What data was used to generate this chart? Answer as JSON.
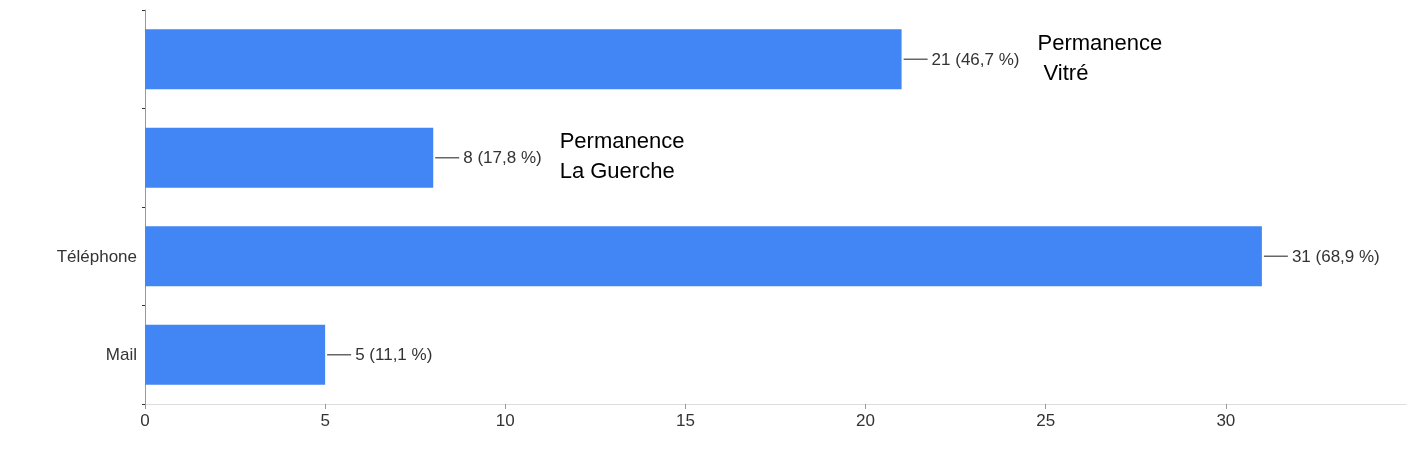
{
  "chart_data": {
    "type": "bar",
    "orientation": "horizontal",
    "categories": [
      null,
      null,
      "Téléphone",
      "Mail"
    ],
    "values": [
      21,
      8,
      31,
      5
    ],
    "color": "#4285f4",
    "value_labels": [
      "21 (46,7 %)",
      "8 (17,8 %)",
      "31 (68,9 %)",
      "5 (11,1 %)"
    ],
    "annotations": [
      "Permanence\n Vitré",
      "Permanence\nLa Guerche"
    ],
    "xlim": [
      0,
      35
    ],
    "xticks": [
      0,
      5,
      10,
      15,
      20,
      25,
      30
    ],
    "grid": false
  }
}
